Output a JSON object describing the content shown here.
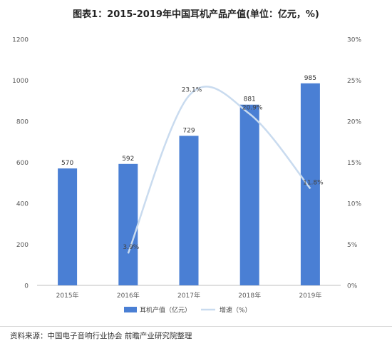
{
  "chart_data": {
    "type": "bar",
    "title": "图表1：2015-2019年中国耳机产品产值(单位：亿元，%)",
    "categories": [
      "2015年",
      "2016年",
      "2017年",
      "2018年",
      "2019年"
    ],
    "series": [
      {
        "name": "耳机产值（亿元）",
        "type": "bar",
        "axis": "left",
        "values": [
          570,
          592,
          729,
          881,
          985
        ],
        "labels": [
          "570",
          "592",
          "729",
          "881",
          "985"
        ],
        "color": "#4a7fd4"
      },
      {
        "name": "增速（%）",
        "type": "line",
        "axis": "right",
        "smooth": true,
        "values": [
          null,
          3.9,
          23.1,
          20.9,
          11.8
        ],
        "labels": [
          "",
          "3.9%",
          "23.1%",
          "20.9%",
          "11.8%"
        ],
        "color": "#c9dbef"
      }
    ],
    "y_left": {
      "min": 0,
      "max": 1200,
      "ticks": [
        "0",
        "200",
        "400",
        "600",
        "800",
        "1000",
        "1200"
      ]
    },
    "y_right": {
      "min": 0,
      "max": 30,
      "ticks": [
        "0%",
        "5%",
        "10%",
        "15%",
        "20%",
        "25%",
        "30%"
      ]
    },
    "legend_position": "bottom",
    "grid": false
  },
  "source": "资料来源：中国电子音响行业协会 前瞻产业研究院整理"
}
